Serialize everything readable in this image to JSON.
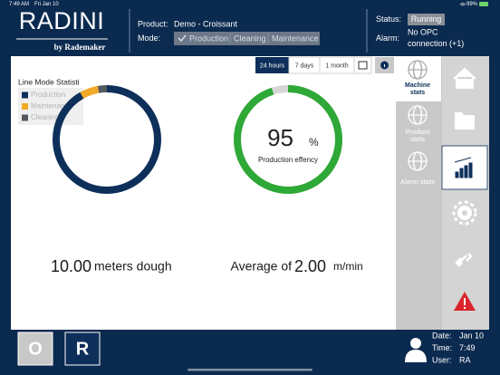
{
  "status_bar": {
    "time": "7:49 AM",
    "date": "Fri Jan 10",
    "battery": "99%"
  },
  "header": {
    "logo": "RADINI",
    "logo_sub": "by Rademaker",
    "product_label": "Product:",
    "product": "Demo - Croissant",
    "mode_label": "Mode:",
    "modes": [
      "Production",
      "Cleaning",
      "Maintenance"
    ],
    "status_label": "Status:",
    "status": "Running",
    "alarm_label": "Alarm:",
    "alarm": [
      "No OPC",
      "connection (+1)"
    ]
  },
  "period_buttons": [
    "24 hours",
    "7 days",
    "1 month"
  ],
  "line_mode": {
    "title": "Line Mode Statisti",
    "segments": [
      {
        "name": "Production",
        "color": "#0d2f5a",
        "value": 91.7
      },
      {
        "name": "Maintenance",
        "color": "#f2a928",
        "value": 5.5
      },
      {
        "name": "Cleaning",
        "color": "#555a60",
        "value": 2.8
      }
    ]
  },
  "efficiency": {
    "value": 95,
    "unit": "%",
    "label": "Production effency",
    "color": "#2ea836",
    "rest_color": "#d6d6d6"
  },
  "output": {
    "value": "10.00",
    "unit": "meters dough"
  },
  "average": {
    "prefix": "Average of",
    "value": "2.00",
    "unit": "m/min"
  },
  "stat_tabs": [
    [
      "Machine",
      "stats"
    ],
    [
      "Product",
      "stats"
    ],
    [
      "Alarm stats"
    ]
  ],
  "footer": {
    "buttons": [
      "O",
      "R"
    ],
    "date_label": "Date:",
    "date": "Jan 10",
    "time_label": "Time:",
    "time": "7:49",
    "user_label": "User:",
    "user": "RA"
  }
}
